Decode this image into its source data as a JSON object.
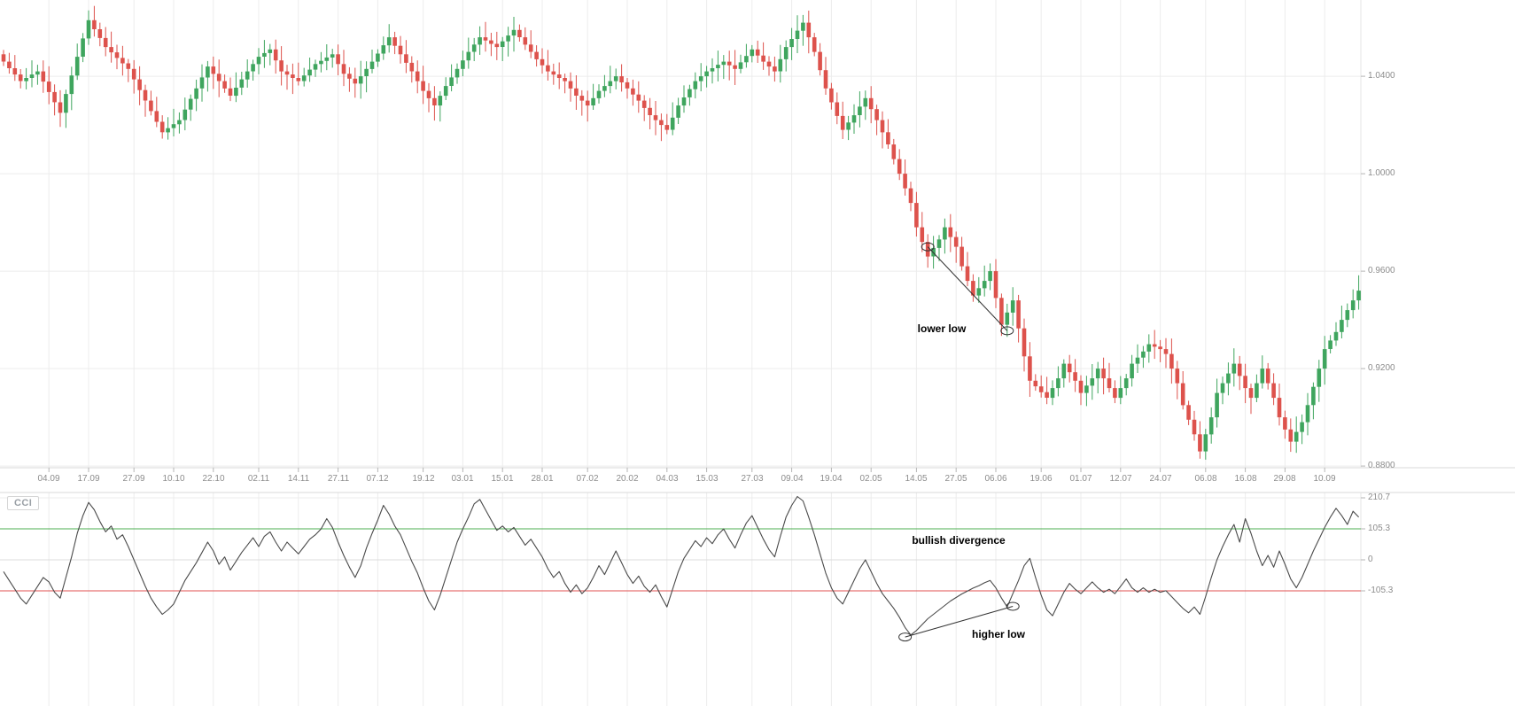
{
  "chart_data": [
    {
      "type": "candlestick",
      "pane": "price",
      "title": "",
      "xlabel": "",
      "ylabel": "",
      "grid": true,
      "ylim": [
        0.8793,
        1.0713
      ],
      "y_tick_labels": [
        "1.0400",
        "1.0000",
        "0.9600",
        "0.9200",
        "0.8800"
      ],
      "y_tick_values": [
        1.04,
        1.0,
        0.96,
        0.92,
        0.88
      ],
      "x_tick_labels": [
        "04.09",
        "17.09",
        "27.09",
        "10.10",
        "22.10",
        "02.11",
        "14.11",
        "27.11",
        "07.12",
        "19.12",
        "03.01",
        "15.01",
        "28.01",
        "07.02",
        "20.02",
        "04.03",
        "15.03",
        "27.03",
        "09.04",
        "19.04",
        "02.05",
        "14.05",
        "27.05",
        "06.06",
        "19.06",
        "01.07",
        "12.07",
        "24.07",
        "06.08",
        "16.08",
        "29.08",
        "10.09"
      ],
      "x_tick_indices": [
        8,
        15,
        23,
        30,
        37,
        45,
        52,
        59,
        66,
        74,
        81,
        88,
        95,
        103,
        110,
        117,
        124,
        132,
        139,
        146,
        153,
        161,
        168,
        175,
        183,
        190,
        197,
        204,
        212,
        219,
        226,
        233
      ],
      "colors": {
        "up": "#3fa55e",
        "down": "#dd524c"
      },
      "closes": [
        1.046,
        1.0433,
        1.0407,
        1.038,
        1.0393,
        1.0407,
        1.042,
        1.0378,
        1.0335,
        1.0293,
        1.025,
        1.0327,
        1.0403,
        1.048,
        1.0555,
        1.063,
        1.0593,
        1.0557,
        1.052,
        1.0498,
        1.0475,
        1.0453,
        1.043,
        1.0387,
        1.0343,
        1.03,
        1.0257,
        1.0213,
        1.017,
        1.0187,
        1.0203,
        1.022,
        1.0263,
        1.0307,
        1.035,
        1.0395,
        1.044,
        1.041,
        1.038,
        1.035,
        1.032,
        1.0353,
        1.0387,
        1.042,
        1.045,
        1.048,
        1.0495,
        1.051,
        1.0465,
        1.042,
        1.0407,
        1.0393,
        1.038,
        1.0403,
        1.0427,
        1.045,
        1.0463,
        1.0477,
        1.049,
        1.045,
        1.041,
        1.039,
        1.037,
        1.04,
        1.043,
        1.046,
        1.0493,
        1.0527,
        1.056,
        1.0525,
        1.049,
        1.0455,
        1.042,
        1.038,
        1.034,
        1.031,
        1.028,
        1.032,
        1.036,
        1.0395,
        1.043,
        1.0465,
        1.05,
        1.053,
        1.056,
        1.0547,
        1.0533,
        1.052,
        1.0543,
        1.0567,
        1.059,
        1.056,
        1.053,
        1.05,
        1.047,
        1.0445,
        1.042,
        1.0407,
        1.0393,
        1.038,
        1.035,
        1.032,
        1.03,
        1.028,
        1.031,
        1.034,
        1.036,
        1.038,
        1.04,
        1.0375,
        1.035,
        1.0325,
        1.03,
        1.027,
        1.024,
        1.022,
        1.02,
        1.018,
        1.023,
        1.028,
        1.0313,
        1.0347,
        1.038,
        1.04,
        1.042,
        1.0433,
        1.0447,
        1.046,
        1.0445,
        1.043,
        1.0457,
        1.0483,
        1.051,
        1.0485,
        1.046,
        1.044,
        1.042,
        1.047,
        1.052,
        1.0553,
        1.0587,
        1.062,
        1.056,
        1.05,
        1.0425,
        1.035,
        1.0293,
        1.0237,
        1.018,
        1.021,
        1.024,
        1.0275,
        1.031,
        1.0265,
        1.022,
        1.017,
        1.012,
        1.006,
        1.0,
        0.994,
        0.988,
        0.978,
        0.972,
        0.966,
        0.9695,
        0.973,
        0.978,
        0.974,
        0.97,
        0.962,
        0.956,
        0.95,
        0.953,
        0.956,
        0.96,
        0.949,
        0.938,
        0.943,
        0.948,
        0.9365,
        0.925,
        0.915,
        0.9127,
        0.9103,
        0.908,
        0.912,
        0.916,
        0.922,
        0.9185,
        0.915,
        0.91,
        0.913,
        0.916,
        0.92,
        0.916,
        0.912,
        0.908,
        0.912,
        0.916,
        0.922,
        0.9245,
        0.927,
        0.93,
        0.929,
        0.928,
        0.926,
        0.92,
        0.914,
        0.905,
        0.899,
        0.893,
        0.886,
        0.893,
        0.9,
        0.91,
        0.914,
        0.918,
        0.922,
        0.917,
        0.912,
        0.908,
        0.914,
        0.92,
        0.914,
        0.908,
        0.9,
        0.895,
        0.89,
        0.894,
        0.898,
        0.905,
        0.9125,
        0.92,
        0.928,
        0.9315,
        0.935,
        0.94,
        0.944,
        0.948,
        0.952
      ],
      "annotation": {
        "label": "lower low",
        "label_anchor": {
          "index": 165.5,
          "price": 0.9365
        },
        "line": {
          "from": {
            "index": 163,
            "price": 0.97
          },
          "to": {
            "index": 177,
            "price": 0.9355
          }
        }
      }
    },
    {
      "type": "line",
      "pane": "indicator",
      "label": "CCI",
      "line_color": "#4a4a4a",
      "grid": true,
      "ylim": [
        -496.4,
        228.6
      ],
      "y_tick_labels": [
        "210.7",
        "105.3",
        "0",
        "-105.3"
      ],
      "y_tick_values": [
        210.7,
        105.3,
        0,
        -105.3
      ],
      "levels": [
        {
          "name": "overbought-line",
          "value": 105.3,
          "color": "#4caf50"
        },
        {
          "name": "zero-line",
          "value": 0,
          "color": "#dcdcdc"
        },
        {
          "name": "oversold-line",
          "value": -105.3,
          "color": "#e05252"
        }
      ],
      "values": [
        -40,
        -70,
        -100,
        -130,
        -150,
        -120,
        -90,
        -60,
        -75,
        -110,
        -130,
        -60,
        10,
        90,
        150,
        195,
        170,
        130,
        95,
        115,
        70,
        85,
        45,
        0,
        -45,
        -90,
        -130,
        -160,
        -185,
        -170,
        -150,
        -110,
        -70,
        -40,
        -10,
        25,
        60,
        30,
        -15,
        10,
        -35,
        -5,
        25,
        50,
        75,
        45,
        80,
        95,
        60,
        30,
        60,
        40,
        20,
        45,
        70,
        85,
        105,
        140,
        110,
        60,
        15,
        -25,
        -60,
        -20,
        40,
        90,
        135,
        185,
        155,
        115,
        85,
        40,
        -5,
        -45,
        -95,
        -140,
        -170,
        -120,
        -60,
        0,
        60,
        105,
        145,
        190,
        205,
        170,
        135,
        100,
        115,
        95,
        110,
        80,
        50,
        70,
        40,
        10,
        -30,
        -60,
        -40,
        -80,
        -110,
        -85,
        -115,
        -95,
        -60,
        -20,
        -50,
        -10,
        30,
        -10,
        -50,
        -80,
        -55,
        -90,
        -110,
        -85,
        -125,
        -160,
        -100,
        -40,
        5,
        35,
        65,
        45,
        75,
        55,
        85,
        105,
        70,
        40,
        85,
        125,
        150,
        110,
        70,
        35,
        10,
        80,
        145,
        185,
        215,
        200,
        145,
        85,
        20,
        -45,
        -95,
        -130,
        -150,
        -110,
        -70,
        -30,
        0,
        -40,
        -80,
        -115,
        -140,
        -165,
        -195,
        -230,
        -255,
        -240,
        -220,
        -200,
        -185,
        -170,
        -155,
        -140,
        -128,
        -116,
        -106,
        -96,
        -88,
        -78,
        -70,
        -95,
        -130,
        -160,
        -115,
        -70,
        -20,
        5,
        -60,
        -120,
        -170,
        -190,
        -150,
        -110,
        -80,
        -100,
        -115,
        -95,
        -75,
        -95,
        -110,
        -100,
        -115,
        -90,
        -65,
        -95,
        -110,
        -95,
        -110,
        -100,
        -110,
        -105,
        -125,
        -145,
        -165,
        -180,
        -160,
        -185,
        -125,
        -60,
        0,
        45,
        85,
        120,
        60,
        140,
        90,
        30,
        -20,
        15,
        -25,
        30,
        -15,
        -65,
        -95,
        -60,
        -15,
        30,
        70,
        110,
        145,
        175,
        150,
        120,
        165,
        145
      ],
      "divergence_label": {
        "text": "bullish divergence",
        "anchor": {
          "index": 168.5,
          "value": 66
        }
      },
      "annotation": {
        "label": "higher low",
        "label_anchor": {
          "index": 175.5,
          "value": -253
        },
        "line": {
          "from": {
            "index": 159,
            "value": -262
          },
          "to": {
            "index": 178,
            "value": -158
          }
        }
      }
    }
  ],
  "style": {
    "grid_color": "#ececec",
    "separator_color": "#d9d9d9",
    "axis_text_color": "#8c8c8c",
    "annotation_color": "#000000"
  }
}
